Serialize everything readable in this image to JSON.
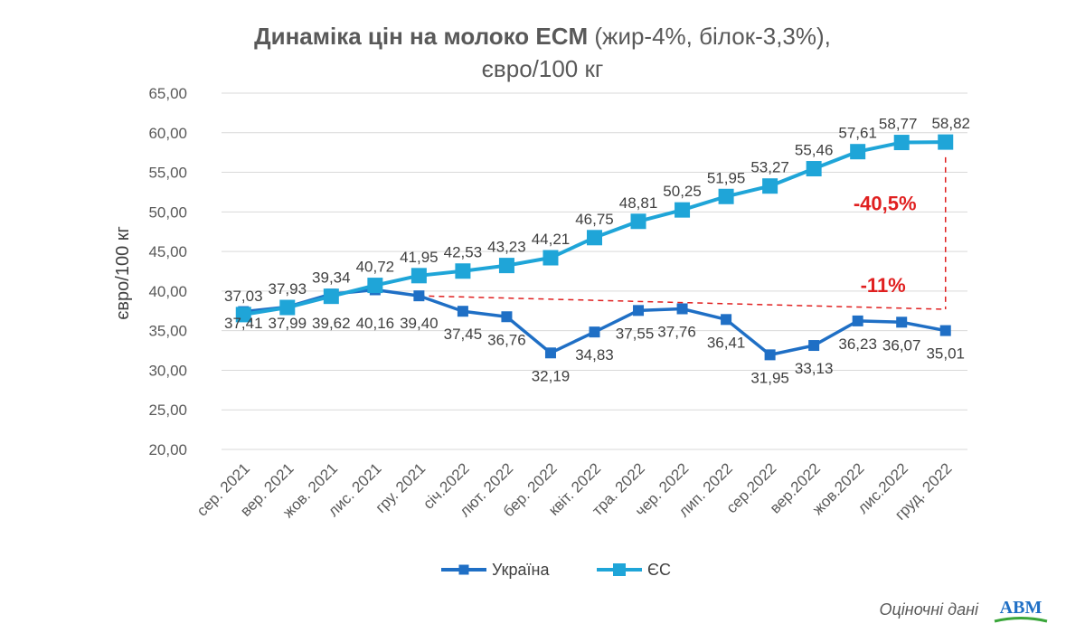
{
  "title": {
    "bold": "Динаміка цін на молоко ECM",
    "rest": " (жир-4%, білок-3,3%),",
    "line2": "євро/100 кг"
  },
  "footer": {
    "note": "Оціночні дані",
    "logo_text": "АВМ"
  },
  "chart_data": {
    "type": "line",
    "categories": [
      "сер. 2021",
      "вер. 2021",
      "жов. 2021",
      "лис. 2021",
      "гру. 2021",
      "січ.2022",
      "лют. 2022",
      "бер. 2022",
      "квіт. 2022",
      "тра. 2022",
      "чер. 2022",
      "лип. 2022",
      "сер.2022",
      "вер.2022",
      "жов.2022",
      "лис.2022",
      "груд. 2022"
    ],
    "series": [
      {
        "name": "Україна",
        "color": "#1f6fc5",
        "values": [
          37.41,
          37.99,
          39.62,
          40.16,
          39.4,
          37.45,
          36.76,
          32.19,
          34.83,
          37.55,
          37.76,
          36.41,
          31.95,
          33.13,
          36.23,
          36.07,
          35.01
        ],
        "labels": [
          "37,41",
          "37,99",
          "39,62",
          "40,16",
          "39,40",
          "37,45",
          "36,76",
          "32,19",
          "34,83",
          "37,55",
          "37,76",
          "36,41",
          "31,95",
          "33,13",
          "36,23",
          "36,07",
          "35,01"
        ]
      },
      {
        "name": "ЄС",
        "color": "#1fa5d8",
        "values": [
          37.03,
          37.93,
          39.34,
          40.72,
          41.95,
          42.53,
          43.23,
          44.21,
          46.75,
          48.81,
          50.25,
          51.95,
          53.27,
          55.46,
          57.61,
          58.77,
          58.82
        ],
        "labels": [
          "37,03",
          "37,93",
          "39,34",
          "40,72",
          "41,95",
          "42,53",
          "43,23",
          "44,21",
          "46,75",
          "48,81",
          "50,25",
          "51,95",
          "53,27",
          "55,46",
          "57,61",
          "58,77",
          "58,82"
        ]
      }
    ],
    "ylabel": "євро/100 кг",
    "xlabel": "",
    "ylim": [
      20,
      65
    ],
    "yticks": [
      "20,00",
      "25,00",
      "30,00",
      "35,00",
      "40,00",
      "45,00",
      "50,00",
      "55,00",
      "60,00",
      "65,00"
    ],
    "grid": true,
    "legend": "bottom",
    "annotations": [
      {
        "text": "-40,5%",
        "color": "#e02020"
      },
      {
        "text": "-11%",
        "color": "#e02020"
      }
    ]
  }
}
